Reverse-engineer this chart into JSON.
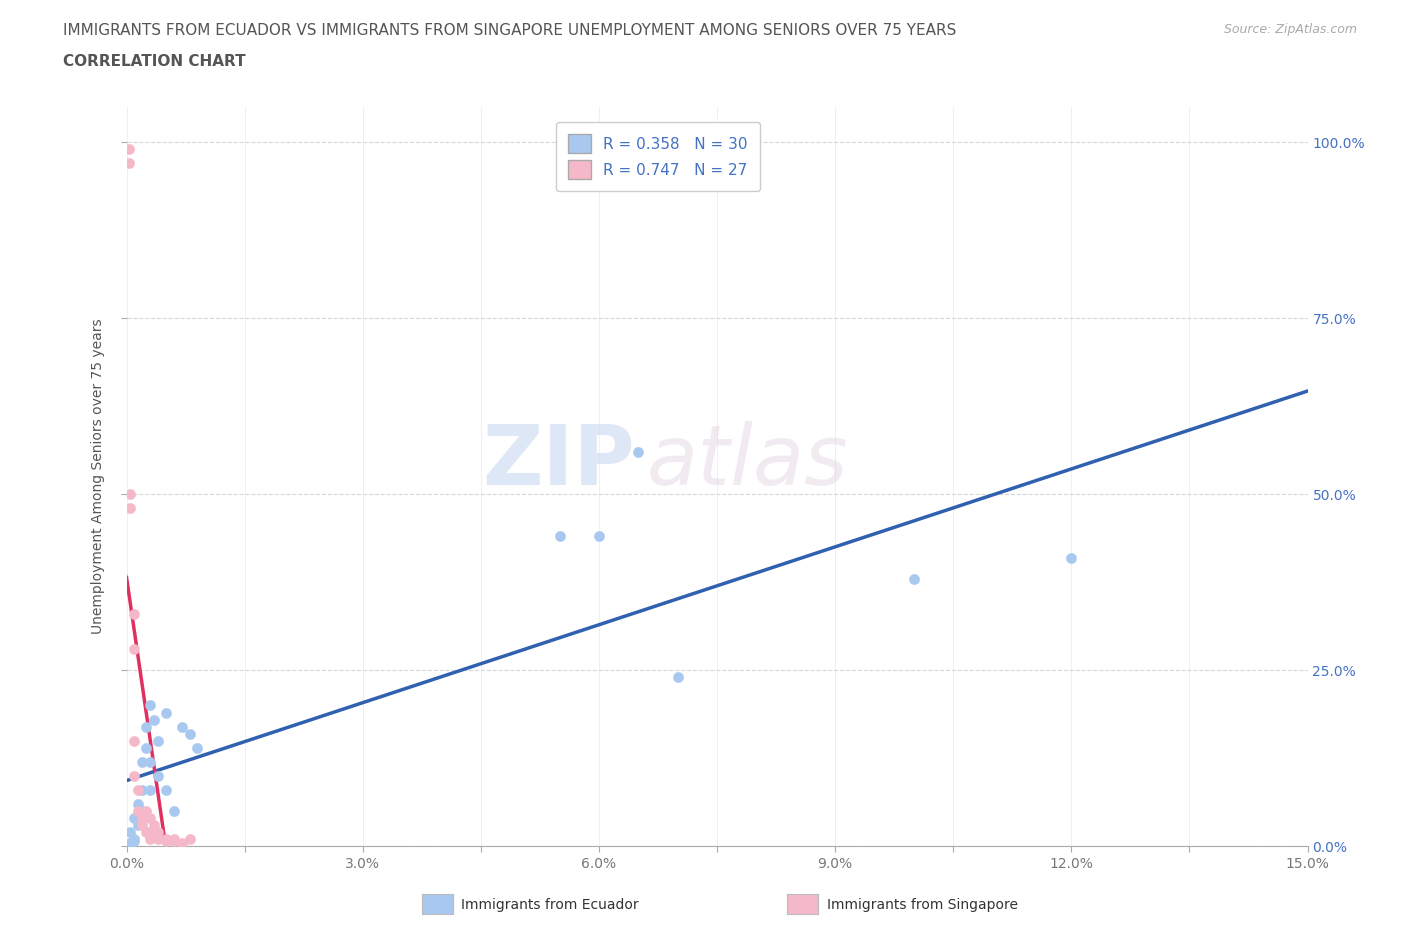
{
  "title_line1": "IMMIGRANTS FROM ECUADOR VS IMMIGRANTS FROM SINGAPORE UNEMPLOYMENT AMONG SENIORS OVER 75 YEARS",
  "title_line2": "CORRELATION CHART",
  "source": "Source: ZipAtlas.com",
  "ylabel": "Unemployment Among Seniors over 75 years",
  "xlim": [
    0.0,
    0.15
  ],
  "ylim": [
    0.0,
    1.05
  ],
  "xticks": [
    0.0,
    0.015,
    0.03,
    0.045,
    0.06,
    0.075,
    0.09,
    0.105,
    0.12,
    0.135,
    0.15
  ],
  "xtick_labels": [
    "0.0%",
    "",
    "3.0%",
    "",
    "6.0%",
    "",
    "9.0%",
    "",
    "12.0%",
    "",
    "15.0%"
  ],
  "yticks": [
    0.0,
    0.25,
    0.5,
    0.75,
    1.0
  ],
  "right_ytick_labels": [
    "100.0%",
    "75.0%",
    "50.0%",
    "25.0%",
    "0.0%"
  ],
  "ecuador_color": "#a8c8f0",
  "singapore_color": "#f5b8c8",
  "ecuador_line_color": "#3060b0",
  "singapore_line_color": "#e03060",
  "r_ecuador": 0.358,
  "n_ecuador": 30,
  "r_singapore": 0.747,
  "n_singapore": 27,
  "legend_label_ecuador": "Immigrants from Ecuador",
  "legend_label_singapore": "Immigrants from Singapore",
  "watermark_zip": "ZIP",
  "watermark_atlas": "atlas",
  "ecuador_points": [
    [
      0.0005,
      0.02
    ],
    [
      0.0005,
      0.005
    ],
    [
      0.001,
      0.04
    ],
    [
      0.001,
      0.01
    ],
    [
      0.001,
      0.008
    ],
    [
      0.0015,
      0.06
    ],
    [
      0.0015,
      0.03
    ],
    [
      0.002,
      0.12
    ],
    [
      0.002,
      0.08
    ],
    [
      0.002,
      0.05
    ],
    [
      0.0025,
      0.17
    ],
    [
      0.0025,
      0.14
    ],
    [
      0.003,
      0.2
    ],
    [
      0.003,
      0.12
    ],
    [
      0.003,
      0.08
    ],
    [
      0.0035,
      0.18
    ],
    [
      0.004,
      0.15
    ],
    [
      0.004,
      0.1
    ],
    [
      0.005,
      0.19
    ],
    [
      0.005,
      0.08
    ],
    [
      0.006,
      0.05
    ],
    [
      0.007,
      0.17
    ],
    [
      0.008,
      0.16
    ],
    [
      0.009,
      0.14
    ],
    [
      0.055,
      0.44
    ],
    [
      0.06,
      0.44
    ],
    [
      0.065,
      0.56
    ],
    [
      0.07,
      0.24
    ],
    [
      0.1,
      0.38
    ],
    [
      0.12,
      0.41
    ]
  ],
  "singapore_points": [
    [
      0.0003,
      0.99
    ],
    [
      0.0003,
      0.97
    ],
    [
      0.0005,
      0.5
    ],
    [
      0.0005,
      0.48
    ],
    [
      0.001,
      0.33
    ],
    [
      0.001,
      0.28
    ],
    [
      0.001,
      0.15
    ],
    [
      0.001,
      0.1
    ],
    [
      0.0015,
      0.08
    ],
    [
      0.0015,
      0.05
    ],
    [
      0.002,
      0.04
    ],
    [
      0.002,
      0.03
    ],
    [
      0.0025,
      0.05
    ],
    [
      0.0025,
      0.02
    ],
    [
      0.003,
      0.04
    ],
    [
      0.003,
      0.02
    ],
    [
      0.003,
      0.01
    ],
    [
      0.0035,
      0.03
    ],
    [
      0.0035,
      0.02
    ],
    [
      0.004,
      0.02
    ],
    [
      0.004,
      0.01
    ],
    [
      0.005,
      0.01
    ],
    [
      0.005,
      0.008
    ],
    [
      0.006,
      0.01
    ],
    [
      0.006,
      0.008
    ],
    [
      0.007,
      0.005
    ],
    [
      0.008,
      0.01
    ]
  ],
  "title_fontsize": 11,
  "axis_label_fontsize": 10,
  "tick_fontsize": 10,
  "legend_fontsize": 11,
  "background_color": "#ffffff",
  "grid_color": "#cccccc",
  "title_color": "#555555",
  "axis_label_color": "#555555",
  "tick_color_right": "#4472c4",
  "tick_color_x": "#777777"
}
